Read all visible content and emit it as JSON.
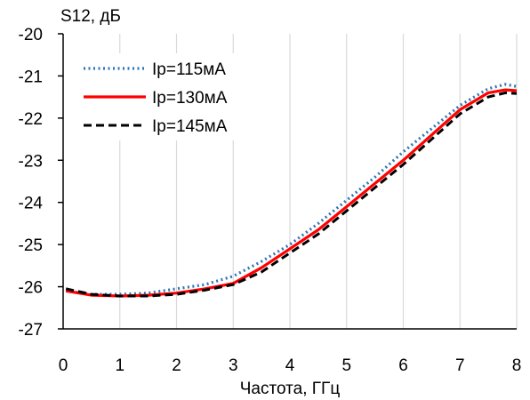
{
  "chart_data": {
    "type": "line",
    "title": "",
    "xlabel": "Частота, ГГц",
    "ylabel": "S12, дБ",
    "xlim": [
      0,
      8
    ],
    "ylim": [
      -27,
      -20
    ],
    "xticks": [
      "0",
      "1",
      "2",
      "3",
      "4",
      "5",
      "6",
      "7",
      "8"
    ],
    "yticks": [
      "-20",
      "-21",
      "-22",
      "-23",
      "-24",
      "-25",
      "-26",
      "-27"
    ],
    "grid": "vertical",
    "legend_position": "top-left",
    "series": [
      {
        "name": "Ip=115мА",
        "color": "#2E75B6",
        "style": "dotted",
        "x": [
          0.05,
          0.5,
          1.0,
          1.5,
          2.0,
          2.5,
          3.0,
          3.5,
          4.0,
          4.5,
          5.0,
          5.5,
          6.0,
          6.5,
          7.0,
          7.5,
          7.8,
          8.0
        ],
        "y": [
          -26.1,
          -26.18,
          -26.18,
          -26.15,
          -26.05,
          -25.95,
          -25.75,
          -25.4,
          -25.0,
          -24.5,
          -23.95,
          -23.4,
          -22.8,
          -22.25,
          -21.7,
          -21.3,
          -21.2,
          -21.25
        ]
      },
      {
        "name": "Ip=130мА",
        "color": "#FF0000",
        "style": "solid",
        "x": [
          0.05,
          0.5,
          1.0,
          1.5,
          2.0,
          2.5,
          3.0,
          3.5,
          4.0,
          4.5,
          5.0,
          5.5,
          6.0,
          6.5,
          7.0,
          7.5,
          7.8,
          8.0
        ],
        "y": [
          -26.1,
          -26.2,
          -26.22,
          -26.2,
          -26.15,
          -26.05,
          -25.92,
          -25.55,
          -25.1,
          -24.65,
          -24.1,
          -23.55,
          -23.0,
          -22.4,
          -21.8,
          -21.4,
          -21.33,
          -21.35
        ]
      },
      {
        "name": "Ip=145мА",
        "color": "#000000",
        "style": "dashed",
        "x": [
          0.05,
          0.5,
          1.0,
          1.5,
          2.0,
          2.5,
          3.0,
          3.5,
          4.0,
          4.5,
          5.0,
          5.5,
          6.0,
          6.5,
          7.0,
          7.5,
          7.8,
          8.0
        ],
        "y": [
          -26.05,
          -26.18,
          -26.22,
          -26.22,
          -26.18,
          -26.08,
          -25.95,
          -25.65,
          -25.2,
          -24.75,
          -24.2,
          -23.65,
          -23.1,
          -22.5,
          -21.9,
          -21.5,
          -21.4,
          -21.42
        ]
      }
    ]
  }
}
